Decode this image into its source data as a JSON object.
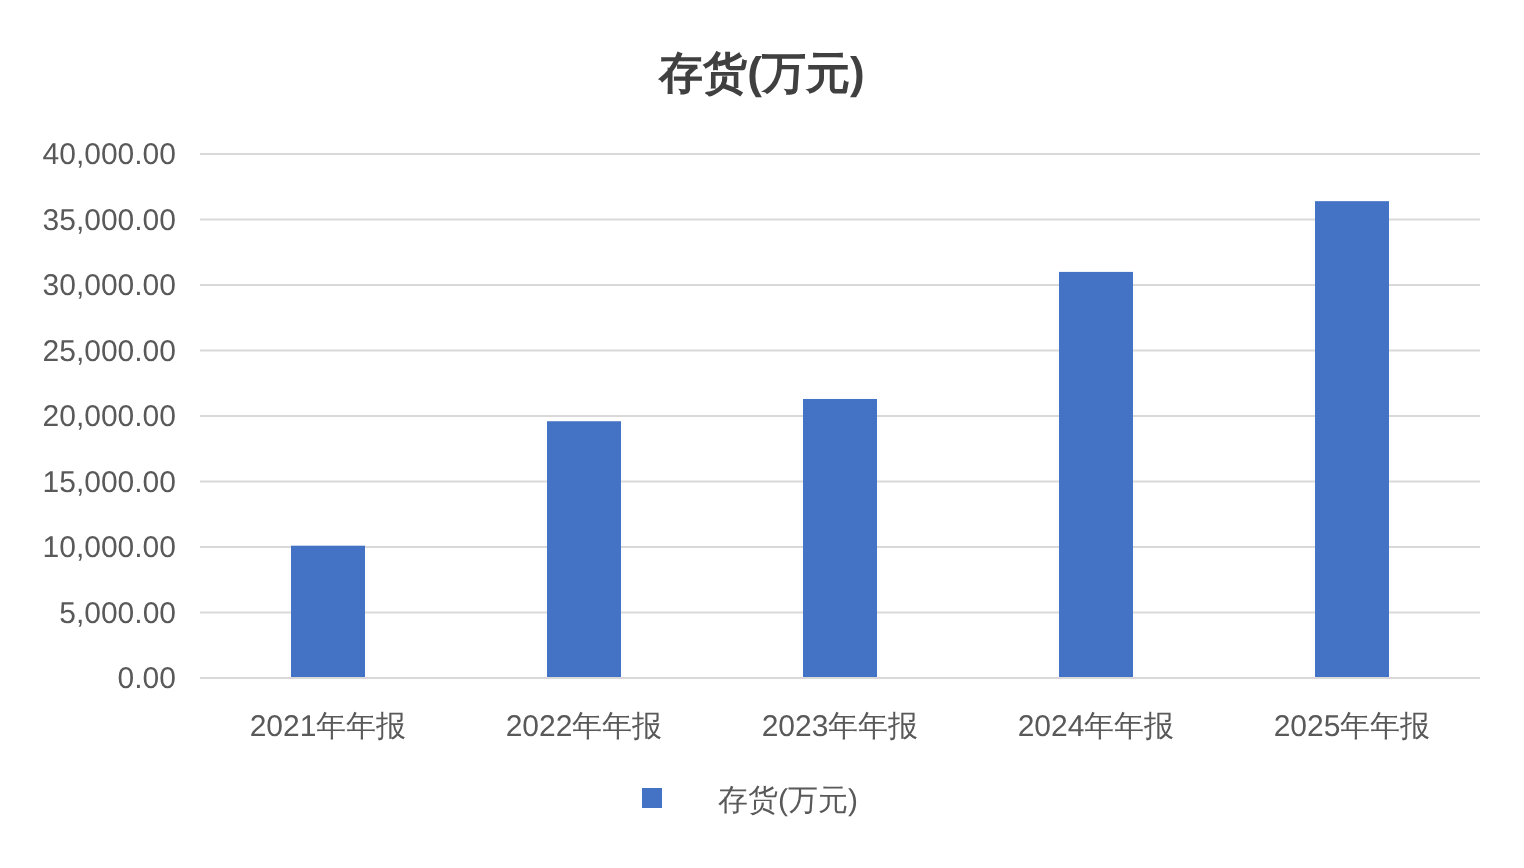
{
  "chart_data": {
    "type": "bar",
    "title": "存货(万元)",
    "categories": [
      "2021年年报",
      "2022年年报",
      "2023年年报",
      "2024年年报",
      "2025年年报"
    ],
    "series": [
      {
        "name": "存货(万元)",
        "color": "#4472c4",
        "values": [
          10100,
          19600,
          21300,
          31000,
          36400
        ]
      }
    ],
    "ylim": [
      0,
      40000
    ],
    "yticks": [
      {
        "value": 0,
        "label": "0.00"
      },
      {
        "value": 5000,
        "label": "5,000.00"
      },
      {
        "value": 10000,
        "label": "10,000.00"
      },
      {
        "value": 15000,
        "label": "15,000.00"
      },
      {
        "value": 20000,
        "label": "20,000.00"
      },
      {
        "value": 25000,
        "label": "25,000.00"
      },
      {
        "value": 30000,
        "label": "30,000.00"
      },
      {
        "value": 35000,
        "label": "35,000.00"
      },
      {
        "value": 40000,
        "label": "40,000.00"
      }
    ],
    "grid": "y",
    "legend": "bottom"
  }
}
